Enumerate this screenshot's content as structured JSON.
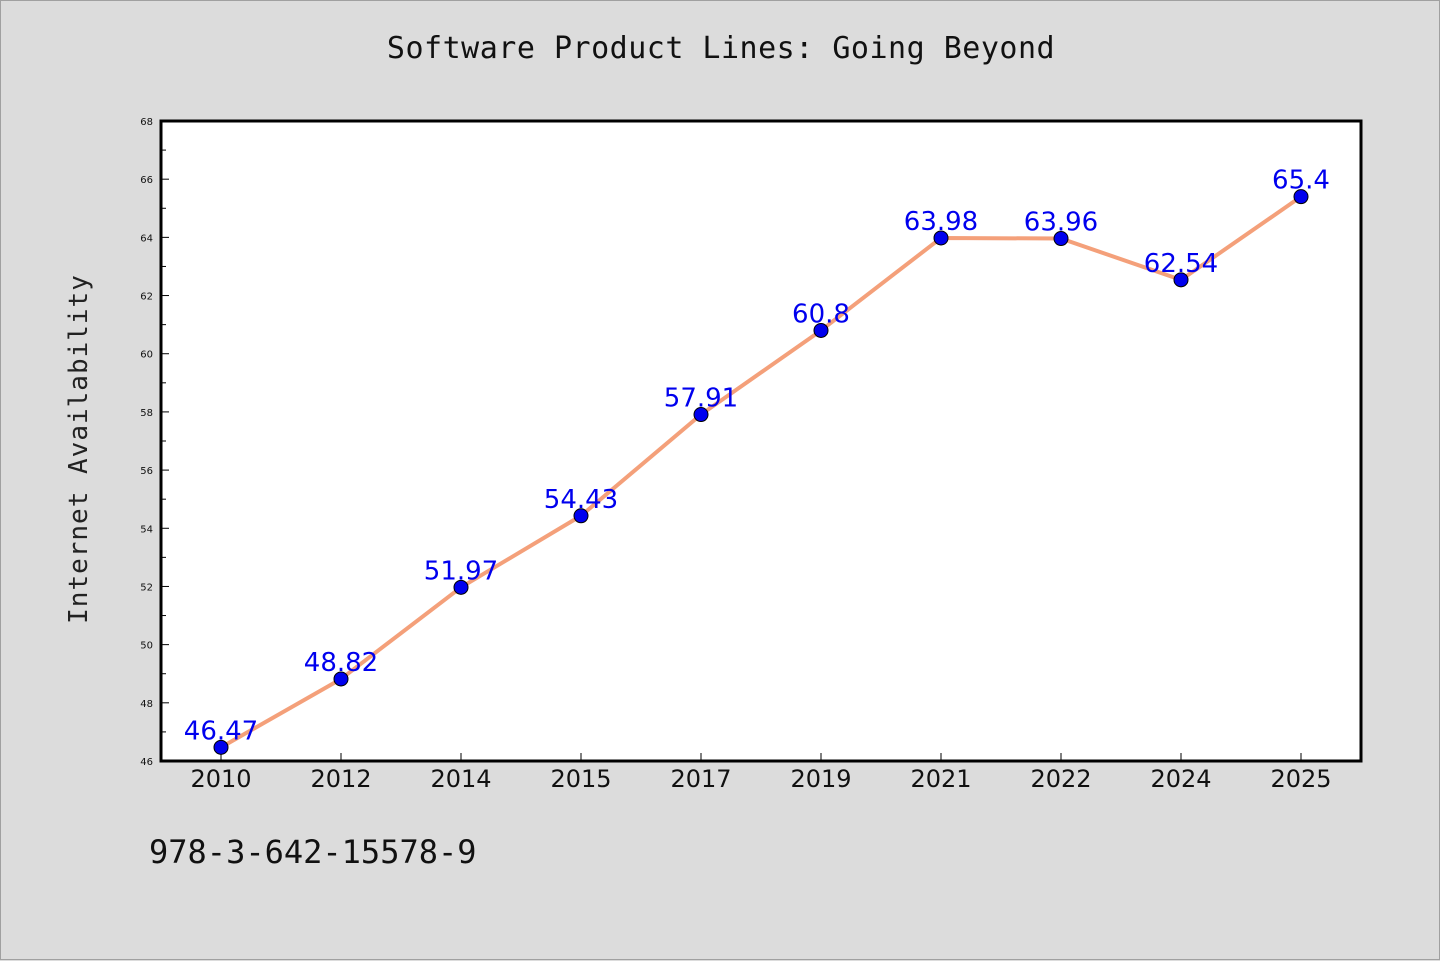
{
  "chart_data": {
    "type": "line",
    "title": "Software Product Lines: Going Beyond",
    "xlabel": "",
    "ylabel": "Internet Availability",
    "categories": [
      "2010",
      "2012",
      "2014",
      "2015",
      "2017",
      "2019",
      "2021",
      "2022",
      "2024",
      "2025"
    ],
    "values": [
      46.47,
      48.82,
      51.97,
      54.43,
      57.91,
      60.8,
      63.98,
      63.96,
      62.54,
      65.4
    ],
    "labels": [
      "46.47",
      "48.82",
      "51.97",
      "54.43",
      "57.91",
      "60.8",
      "63.98",
      "63.96",
      "62.54",
      "65.4"
    ],
    "ylim": [
      46,
      68
    ],
    "yticks": [
      46,
      48,
      50,
      52,
      54,
      56,
      58,
      60,
      62,
      64,
      66,
      68
    ],
    "grid": false,
    "legend": "none",
    "line_color": "#f4a07a",
    "marker_color": "#0000ee",
    "label_color": "#0000ee"
  },
  "footer": {
    "isbn": "978-3-642-15578-9"
  }
}
